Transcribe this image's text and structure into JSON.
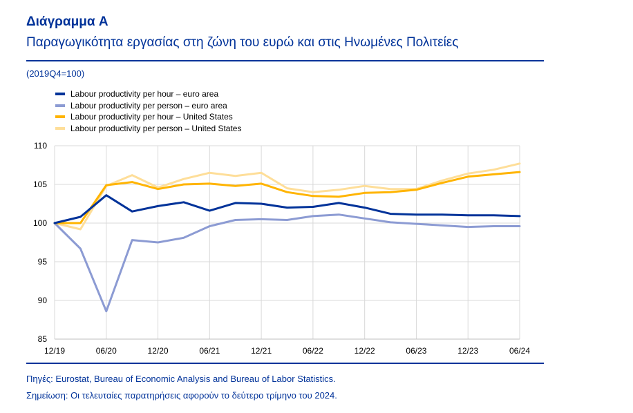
{
  "header": {
    "title": "Διάγραμμα A",
    "subtitle": "Παραγωγικότητα εργασίας στη ζώνη του ευρώ και στις Ηνωμένες Πολιτείες",
    "unit": "(2019Q4=100)"
  },
  "footer": {
    "source": "Πηγές: Eurostat, Bureau of Economic Analysis and Bureau of Labor Statistics.",
    "note": "Σημείωση: Οι τελευταίες παρατηρήσεις αφορούν το δεύτερο τρίμηνο του 2024."
  },
  "chart_data": {
    "type": "line",
    "x": [
      "12/19",
      "03/20",
      "06/20",
      "09/20",
      "12/20",
      "03/21",
      "06/21",
      "09/21",
      "12/21",
      "03/22",
      "06/22",
      "09/22",
      "12/22",
      "03/23",
      "06/23",
      "09/23",
      "12/23",
      "03/24",
      "06/24"
    ],
    "x_tick_labels": [
      "12/19",
      "06/20",
      "12/20",
      "06/21",
      "12/21",
      "06/22",
      "12/22",
      "06/23",
      "12/23",
      "06/24"
    ],
    "y_ticks": [
      "85",
      "90",
      "95",
      "100",
      "105",
      "110"
    ],
    "ylim": [
      85,
      110
    ],
    "grid": true,
    "legend_position": "top-left",
    "series": [
      {
        "name": "Labour productivity per hour – euro area",
        "color": "#003299",
        "width": 3,
        "values": [
          100,
          100.8,
          103.6,
          101.5,
          102.2,
          102.7,
          101.6,
          102.6,
          102.5,
          102.0,
          102.1,
          102.6,
          102.0,
          101.2,
          101.1,
          101.1,
          101.0,
          101.0,
          100.9
        ]
      },
      {
        "name": "Labour productivity per person – euro area",
        "color": "#8C9BD3",
        "width": 3,
        "values": [
          100,
          96.7,
          88.6,
          97.8,
          97.5,
          98.1,
          99.6,
          100.4,
          100.5,
          100.4,
          100.9,
          101.1,
          100.6,
          100.1,
          99.9,
          99.7,
          99.5,
          99.6,
          99.6
        ]
      },
      {
        "name": "Labour productivity per hour – United States",
        "color": "#FFB400",
        "width": 3,
        "values": [
          100,
          100.0,
          104.9,
          105.3,
          104.4,
          105.0,
          105.1,
          104.8,
          105.1,
          104.0,
          103.5,
          103.4,
          103.9,
          104.0,
          104.3,
          105.2,
          106.0,
          106.3,
          106.6
        ]
      },
      {
        "name": "Labour productivity per person – United States",
        "color": "#FEDE99",
        "width": 3,
        "values": [
          100,
          99.2,
          104.8,
          106.2,
          104.6,
          105.7,
          106.5,
          106.1,
          106.5,
          104.5,
          104.0,
          104.3,
          104.8,
          104.4,
          104.4,
          105.5,
          106.4,
          106.9,
          107.7
        ]
      }
    ]
  }
}
